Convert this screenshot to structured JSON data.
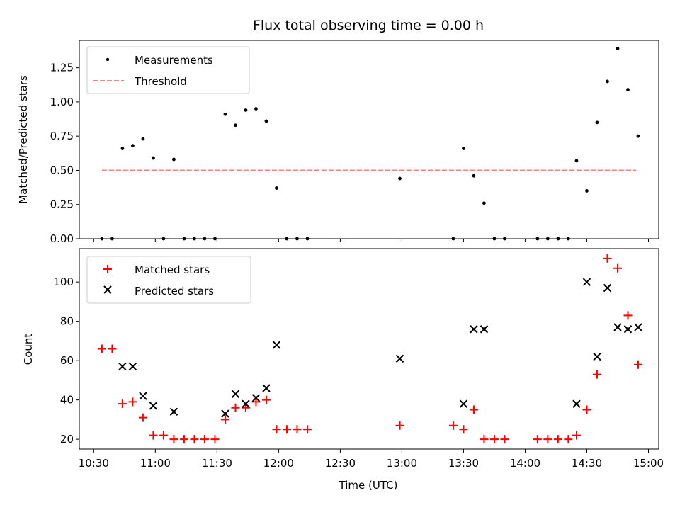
{
  "chart_data": [
    {
      "type": "scatter",
      "title": "Flux total observing time = 0.00 h",
      "xlabel": "",
      "ylabel": "Matched/Predicted stars",
      "xlim": [
        "10:23",
        "15:05"
      ],
      "ylim": [
        0,
        1.45
      ],
      "yticks": [
        0,
        0.25,
        0.5,
        0.75,
        1.0,
        1.25
      ],
      "ytick_labels": [
        "0.00",
        "0.25",
        "0.50",
        "0.75",
        "1.00",
        "1.25"
      ],
      "legend_position": "top-left",
      "series": [
        {
          "name": "Measurements",
          "color": "#000000",
          "marker": "dot",
          "x": [
            "10:34",
            "10:39",
            "10:44",
            "10:49",
            "10:54",
            "10:59",
            "11:04",
            "11:09",
            "11:14",
            "11:19",
            "11:24",
            "11:29",
            "11:34",
            "11:39",
            "11:44",
            "11:49",
            "11:54",
            "11:59",
            "12:04",
            "12:09",
            "12:14",
            "12:59",
            "13:25",
            "13:30",
            "13:35",
            "13:40",
            "13:45",
            "13:50",
            "14:06",
            "14:11",
            "14:16",
            "14:21",
            "14:25",
            "14:30",
            "14:35",
            "14:40",
            "14:45",
            "14:50",
            "14:55"
          ],
          "y": [
            0,
            0,
            0.66,
            0.68,
            0.73,
            0.59,
            0,
            0.58,
            0,
            0,
            0,
            0,
            0.91,
            0.83,
            0.94,
            0.95,
            0.86,
            0.37,
            0,
            0,
            0,
            0.44,
            0,
            0.66,
            0.46,
            0.26,
            0,
            0,
            0,
            0,
            0,
            0,
            0.57,
            0.35,
            0.85,
            1.15,
            1.39,
            1.09,
            0.75
          ]
        },
        {
          "name": "Threshold",
          "color": "#ff7f7f",
          "style": "dashed",
          "x": [
            "10:34",
            "14:54"
          ],
          "y": [
            0.5,
            0.5
          ]
        }
      ]
    },
    {
      "type": "scatter",
      "title": "",
      "xlabel": "Time (UTC)",
      "ylabel": "Count",
      "xlim": [
        "10:23",
        "15:05"
      ],
      "ylim": [
        15,
        117
      ],
      "yticks": [
        20,
        40,
        60,
        80,
        100
      ],
      "ytick_labels": [
        "20",
        "40",
        "60",
        "80",
        "100"
      ],
      "xticks": [
        "10:30",
        "11:00",
        "11:30",
        "12:00",
        "12:30",
        "13:00",
        "13:30",
        "14:00",
        "14:30",
        "15:00"
      ],
      "xtick_labels": [
        "10:30",
        "11:00",
        "11:30",
        "12:00",
        "12:30",
        "13:00",
        "13:30",
        "14:00",
        "14:30",
        "15:00"
      ],
      "legend_position": "top-left",
      "series": [
        {
          "name": "Matched stars",
          "color": "#ff0000",
          "marker": "plus",
          "x": [
            "10:34",
            "10:39",
            "10:44",
            "10:49",
            "10:54",
            "10:59",
            "11:04",
            "11:09",
            "11:14",
            "11:19",
            "11:24",
            "11:29",
            "11:34",
            "11:39",
            "11:44",
            "11:49",
            "11:54",
            "11:59",
            "12:04",
            "12:09",
            "12:14",
            "12:59",
            "13:25",
            "13:30",
            "13:35",
            "13:40",
            "13:45",
            "13:50",
            "14:06",
            "14:11",
            "14:16",
            "14:21",
            "14:25",
            "14:30",
            "14:35",
            "14:40",
            "14:45",
            "14:50",
            "14:55"
          ],
          "y": [
            66,
            66,
            38,
            39,
            31,
            22,
            22,
            20,
            20,
            20,
            20,
            20,
            30,
            36,
            36,
            39,
            40,
            25,
            25,
            25,
            25,
            27,
            27,
            25,
            35,
            20,
            20,
            20,
            20,
            20,
            20,
            20,
            22,
            35,
            53,
            112,
            107,
            83,
            58
          ]
        },
        {
          "name": "Predicted stars",
          "color": "#000000",
          "marker": "x",
          "x": [
            "10:44",
            "10:49",
            "10:54",
            "10:59",
            "11:09",
            "11:34",
            "11:39",
            "11:44",
            "11:49",
            "11:54",
            "11:59",
            "12:59",
            "13:30",
            "13:35",
            "13:40",
            "14:25",
            "14:30",
            "14:35",
            "14:40",
            "14:45",
            "14:50",
            "14:55"
          ],
          "y": [
            57,
            57,
            42,
            37,
            34,
            33,
            43,
            38,
            41,
            46,
            68,
            61,
            38,
            76,
            76,
            38,
            100,
            62,
            97,
            77,
            76,
            77
          ]
        }
      ]
    }
  ]
}
